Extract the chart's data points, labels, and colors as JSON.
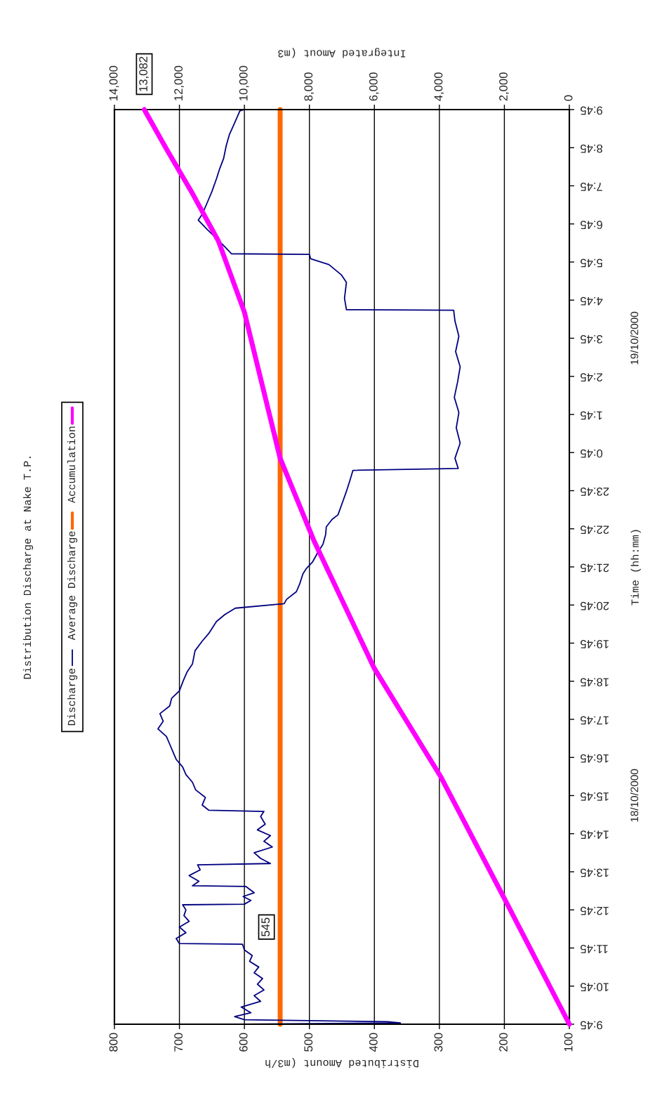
{
  "chart_data": {
    "type": "line",
    "orientation": "horizontal",
    "title": "Distribution Discharge at Nake T.P.",
    "ylabel": "Time (hh:mm)",
    "xlabel": "Distributed Amount (m3/h",
    "x2label": "Integrated Amout (m3",
    "ylim": [
      "2000-10-18T09:45",
      "2000-10-19T09:45"
    ],
    "yticks": [
      {
        "value": "2000-10-18T09:45",
        "label": "9:45"
      },
      {
        "value": "2000-10-18T10:45",
        "label": "10:45"
      },
      {
        "value": "2000-10-18T11:45",
        "label": "11:45"
      },
      {
        "value": "2000-10-18T12:45",
        "label": "12:45"
      },
      {
        "value": "2000-10-18T13:45",
        "label": "13:45"
      },
      {
        "value": "2000-10-18T14:45",
        "label": "14:45"
      },
      {
        "value": "2000-10-18T15:45",
        "label": "15:45"
      },
      {
        "value": "2000-10-18T16:45",
        "label": "16:45"
      },
      {
        "value": "2000-10-18T17:45",
        "label": "17:45"
      },
      {
        "value": "2000-10-18T18:45",
        "label": "18:45"
      },
      {
        "value": "2000-10-18T19:45",
        "label": "19:45"
      },
      {
        "value": "2000-10-18T20:45",
        "label": "20:45"
      },
      {
        "value": "2000-10-18T21:45",
        "label": "21:45"
      },
      {
        "value": "2000-10-18T22:45",
        "label": "22:45"
      },
      {
        "value": "2000-10-18T23:45",
        "label": "23:45"
      },
      {
        "value": "2000-10-19T00:45",
        "label": "0:45"
      },
      {
        "value": "2000-10-19T01:45",
        "label": "1:45"
      },
      {
        "value": "2000-10-19T02:45",
        "label": "2:45"
      },
      {
        "value": "2000-10-19T03:45",
        "label": "3:45"
      },
      {
        "value": "2000-10-19T04:45",
        "label": "4:45"
      },
      {
        "value": "2000-10-19T05:45",
        "label": "5:45"
      },
      {
        "value": "2000-10-19T06:45",
        "label": "6:45"
      },
      {
        "value": "2000-10-19T07:45",
        "label": "7:45"
      },
      {
        "value": "2000-10-19T08:45",
        "label": "8:45"
      },
      {
        "value": "2000-10-19T09:45",
        "label": "9:45"
      }
    ],
    "xlim": [
      800,
      100
    ],
    "xticks": [
      100,
      200,
      300,
      400,
      500,
      600,
      700,
      800
    ],
    "x2lim": [
      14000,
      0
    ],
    "x2ticks": [
      0,
      {
        "value": 2000,
        "label": "2,000"
      },
      {
        "value": 4000,
        "label": "4,000"
      },
      {
        "value": 6000,
        "label": "6,000"
      },
      {
        "value": 8000,
        "label": "8,000"
      },
      {
        "value": 10000,
        "label": "10,000"
      },
      {
        "value": 12000,
        "label": "12,000"
      },
      {
        "value": 14000,
        "label": "14,000"
      }
    ],
    "grid": "x",
    "legend": "left",
    "series": [
      {
        "name": "Discharge",
        "color": "#000080",
        "x": [
          "2000-10-18T09:45",
          "2000-10-18T09:47",
          "2000-10-18T09:49",
          "2000-10-18T09:52",
          "2000-10-18T09:57",
          "2000-10-18T10:03",
          "2000-10-18T10:12",
          "2000-10-18T10:21",
          "2000-10-18T10:30",
          "2000-10-18T10:39",
          "2000-10-18T10:48",
          "2000-10-18T10:57",
          "2000-10-18T11:06",
          "2000-10-18T11:15",
          "2000-10-18T11:24",
          "2000-10-18T11:33",
          "2000-10-18T11:42",
          "2000-10-18T11:51",
          "2000-10-18T11:52",
          "2000-10-18T12:00",
          "2000-10-18T12:09",
          "2000-10-18T12:18",
          "2000-10-18T12:27",
          "2000-10-18T12:36",
          "2000-10-18T12:45",
          "2000-10-18T12:53",
          "2000-10-18T12:54",
          "2000-10-18T13:00",
          "2000-10-18T13:06",
          "2000-10-18T13:12",
          "2000-10-18T13:22",
          "2000-10-18T13:23",
          "2000-10-18T13:30",
          "2000-10-18T13:39",
          "2000-10-18T13:48",
          "2000-10-18T13:56",
          "2000-10-18T13:58",
          "2000-10-18T14:06",
          "2000-10-18T14:15",
          "2000-10-18T14:24",
          "2000-10-18T14:33",
          "2000-10-18T14:42",
          "2000-10-18T14:51",
          "2000-10-18T15:00",
          "2000-10-18T15:12",
          "2000-10-18T15:20",
          "2000-10-18T15:22",
          "2000-10-18T15:30",
          "2000-10-18T15:42",
          "2000-10-18T15:54",
          "2000-10-18T16:06",
          "2000-10-18T16:18",
          "2000-10-18T16:30",
          "2000-10-18T16:42",
          "2000-10-18T16:54",
          "2000-10-18T17:06",
          "2000-10-18T17:18",
          "2000-10-18T17:30",
          "2000-10-18T17:42",
          "2000-10-18T17:54",
          "2000-10-18T18:06",
          "2000-10-18T18:18",
          "2000-10-18T18:30",
          "2000-10-18T18:46",
          "2000-10-18T19:00",
          "2000-10-18T19:12",
          "2000-10-18T19:33",
          "2000-10-18T19:48",
          "2000-10-18T20:00",
          "2000-10-18T20:19",
          "2000-10-18T20:30",
          "2000-10-18T20:40",
          "2000-10-18T20:47",
          "2000-10-18T20:54",
          "2000-10-18T21:06",
          "2000-10-18T21:18",
          "2000-10-18T21:34",
          "2000-10-18T21:42",
          "2000-10-18T21:53",
          "2000-10-18T22:06",
          "2000-10-18T22:21",
          "2000-10-18T22:36",
          "2000-10-18T22:48",
          "2000-10-18T23:00",
          "2000-10-18T23:07",
          "2000-10-18T23:24",
          "2000-10-18T23:44",
          "2000-10-19T00:00",
          "2000-10-19T00:17",
          "2000-10-19T00:20",
          "2000-10-19T00:36",
          "2000-10-19T01:00",
          "2000-10-19T01:24",
          "2000-10-19T01:48",
          "2000-10-19T02:12",
          "2000-10-19T02:36",
          "2000-10-19T03:00",
          "2000-10-19T03:24",
          "2000-10-19T03:48",
          "2000-10-19T04:12",
          "2000-10-19T04:29",
          "2000-10-19T04:30",
          "2000-10-19T04:48",
          "2000-10-19T05:13",
          "2000-10-19T05:25",
          "2000-10-19T05:41",
          "2000-10-19T05:50",
          "2000-10-19T05:57",
          "2000-10-19T05:58",
          "2000-10-19T06:13",
          "2000-10-19T06:36",
          "2000-10-19T06:51",
          "2000-10-19T07:00",
          "2000-10-19T07:19",
          "2000-10-19T07:36",
          "2000-10-19T07:56",
          "2000-10-19T08:12",
          "2000-10-19T08:28",
          "2000-10-19T08:48",
          "2000-10-19T09:06",
          "2000-10-19T09:24",
          "2000-10-19T09:43",
          "2000-10-19T09:45"
        ],
        "values": [
          600,
          360,
          380,
          600,
          615,
          590,
          605,
          575,
          585,
          570,
          580,
          572,
          585,
          578,
          592,
          588,
          600,
          603,
          700,
          705,
          690,
          700,
          685,
          693,
          690,
          695,
          600,
          590,
          602,
          585,
          598,
          680,
          670,
          685,
          668,
          672,
          560,
          575,
          585,
          557,
          570,
          560,
          580,
          568,
          575,
          570,
          655,
          665,
          660,
          675,
          680,
          690,
          695,
          705,
          710,
          715,
          720,
          733,
          725,
          730,
          715,
          712,
          700,
          694,
          688,
          680,
          676,
          665,
          655,
          643,
          630,
          614,
          539,
          535,
          520,
          515,
          510,
          505,
          495,
          488,
          479,
          475,
          474,
          465,
          456,
          450,
          443,
          438,
          433,
          271,
          276,
          268,
          274,
          270,
          277,
          272,
          268,
          275,
          270,
          276,
          278,
          443,
          446,
          443,
          451,
          470,
          498,
          500,
          620,
          634,
          657,
          671,
          665,
          657,
          650,
          643,
          638,
          632,
          628,
          623,
          615,
          607,
          600
        ]
      },
      {
        "name": "Average Discharge",
        "color": "#ff6600",
        "x": [
          "2000-10-18T09:45",
          "2000-10-19T09:45"
        ],
        "values": [
          545,
          545
        ]
      },
      {
        "name": "Accumulation",
        "color": "#ff00ff",
        "axis": "x2",
        "x": [
          "2000-10-18T09:45",
          "2000-10-18T12:58",
          "2000-10-18T16:14",
          "2000-10-18T19:05",
          "2000-10-18T22:25",
          "2000-10-19T00:36",
          "2000-10-19T04:26",
          "2000-10-19T06:18",
          "2000-10-19T07:33",
          "2000-10-19T08:43",
          "2000-10-19T09:45"
        ],
        "values": [
          0,
          1950,
          3950,
          6000,
          7850,
          8900,
          10000,
          10800,
          11600,
          12400,
          13082
        ],
        "value_labels": [
          null,
          null,
          null,
          null,
          null,
          null,
          null,
          null,
          null,
          null,
          "13,082"
        ]
      }
    ],
    "annotations": [
      {
        "text": "545",
        "x": 545,
        "y": "2000-10-18T12:18"
      },
      "18/10/2000",
      "19/10/2000"
    ]
  }
}
